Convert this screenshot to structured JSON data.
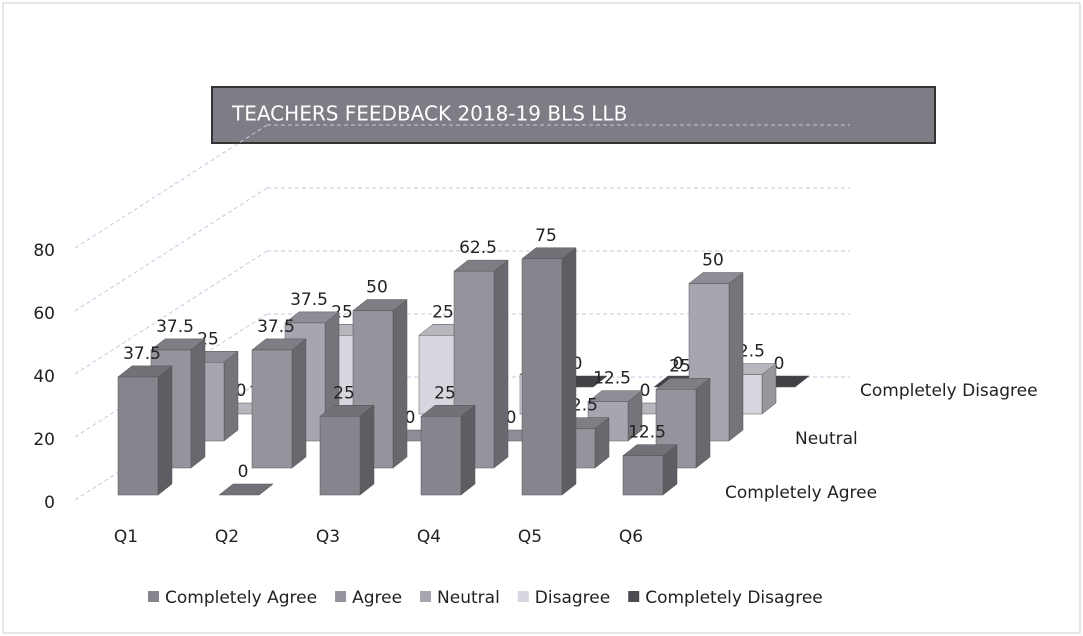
{
  "chart_data": {
    "type": "bar3d",
    "title": "TEACHERS FEEDBACK 2018-19 BLS LLB",
    "categories": [
      "Q1",
      "Q2",
      "Q3",
      "Q4",
      "Q5",
      "Q6"
    ],
    "series": [
      {
        "name": "Completely Agree",
        "color": "#85858d",
        "values": [
          37.5,
          0,
          25,
          25,
          75,
          12.5
        ]
      },
      {
        "name": "Agree",
        "color": "#94949d",
        "values": [
          37.5,
          37.5,
          50,
          62.5,
          12.5,
          25
        ]
      },
      {
        "name": "Neutral",
        "color": "#a6a6b0",
        "values": [
          25,
          37.5,
          0,
          0,
          12.5,
          50
        ]
      },
      {
        "name": "Disagree",
        "color": "#d6d6de",
        "values": [
          0,
          25,
          25,
          12.5,
          0,
          12.5
        ]
      },
      {
        "name": "Completely Disagree",
        "color": "#4c4c53",
        "values": [
          0,
          0,
          0,
          0,
          0,
          0
        ]
      }
    ],
    "ylim": [
      0,
      80
    ],
    "yticks": [
      0,
      20,
      40,
      60,
      80
    ],
    "grid": true
  }
}
